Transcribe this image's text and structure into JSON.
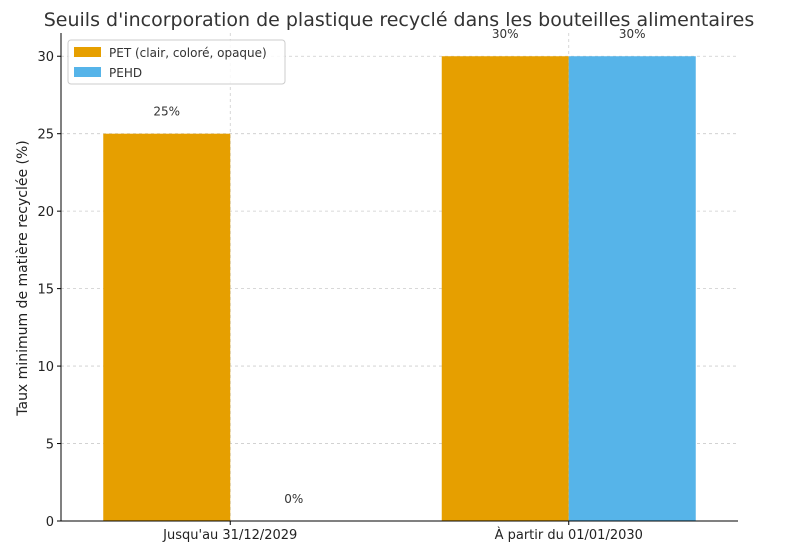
{
  "chart_data": {
    "type": "bar",
    "title": "Seuils d'incorporation de plastique recyclé dans les bouteilles alimentaires",
    "xlabel": "",
    "ylabel": "Taux minimum de matière recyclée (%)",
    "categories": [
      "Jusqu'au 31/12/2029",
      "À partir du 01/01/2030"
    ],
    "series": [
      {
        "name": "PET (clair, coloré, opaque)",
        "values": [
          25,
          30
        ],
        "labels": [
          "25%",
          "30%"
        ],
        "color": "#E69F00"
      },
      {
        "name": "PEHD",
        "values": [
          0,
          30
        ],
        "labels": [
          "0%",
          "30%"
        ],
        "color": "#56B4E9"
      }
    ],
    "ylim": [
      0,
      31.5
    ],
    "yticks": [
      0,
      5,
      10,
      15,
      20,
      25,
      30
    ],
    "grid": true,
    "legend_position": "top-left"
  }
}
